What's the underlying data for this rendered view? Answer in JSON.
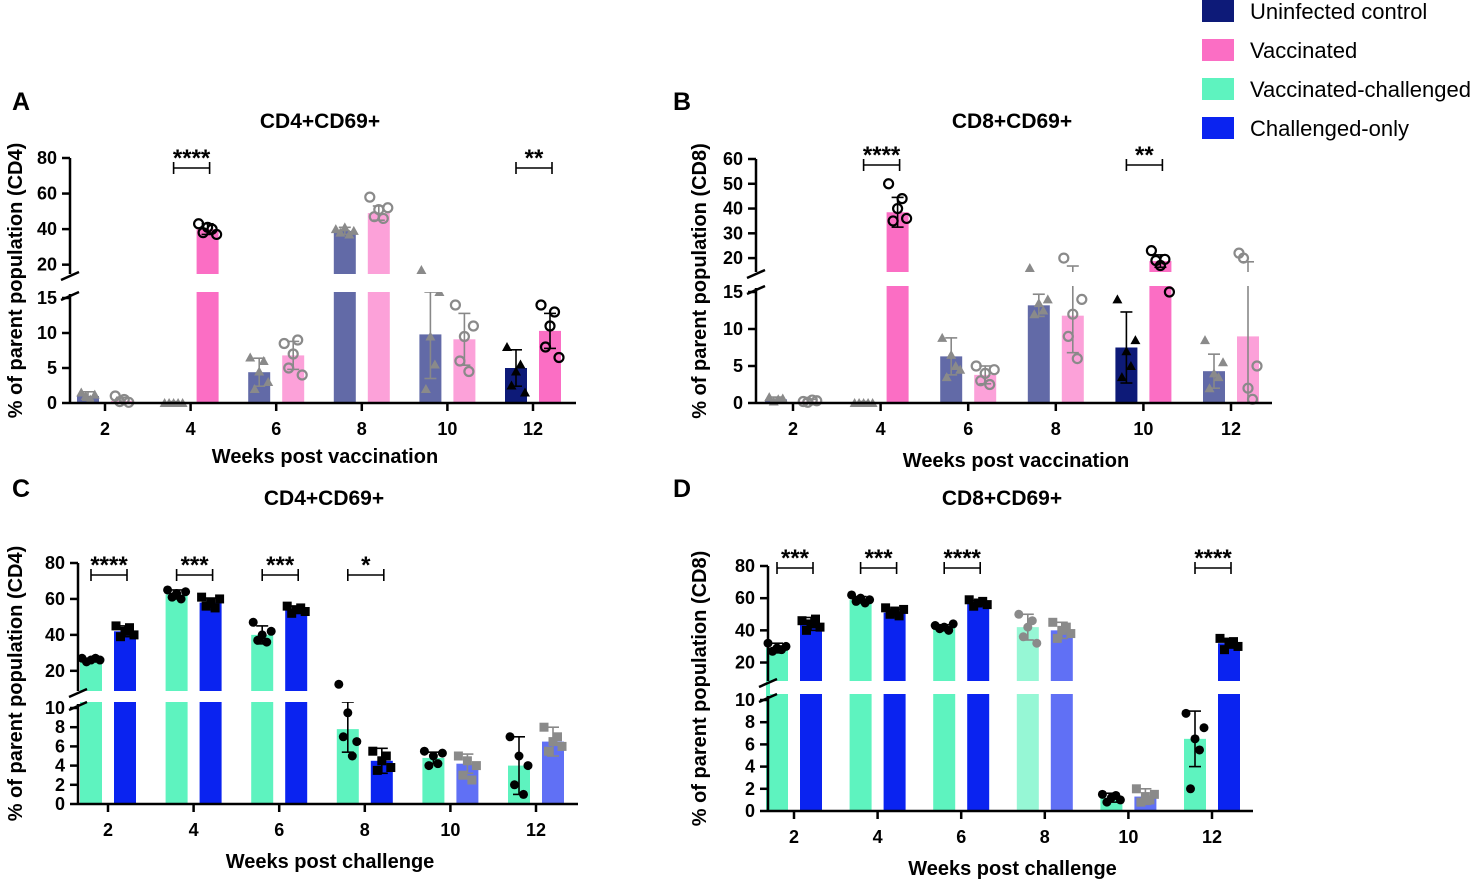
{
  "legend": {
    "items": [
      {
        "key": "uninfected",
        "label": "Uninfected control",
        "color": "#0d1a78"
      },
      {
        "key": "vaccinated",
        "label": "Vaccinated",
        "color": "#fb6ec4"
      },
      {
        "key": "vacc_chal",
        "label": "Vaccinated-challenged",
        "color": "#5ef3bf"
      },
      {
        "key": "chal_only",
        "label": "Challenged-only",
        "color": "#0a23f0"
      }
    ]
  },
  "chart_data": [
    {
      "panel": "A",
      "type": "bar",
      "title": "CD4+CD69+",
      "xlabel": "Weeks post vaccination",
      "ylabel": "% of parent population (CD4)",
      "categories": [
        "2",
        "4",
        "6",
        "8",
        "10",
        "12"
      ],
      "y_broken": true,
      "lower_ylim": [
        0,
        15
      ],
      "lower_ticks": [
        0,
        5,
        10,
        15
      ],
      "upper_ylim": [
        17,
        80
      ],
      "upper_ticks": [
        20,
        40,
        60,
        80
      ],
      "series": [
        {
          "name": "Uninfected control",
          "marker": "triangle",
          "values": [
            1.0,
            0.1,
            4.4,
            39.0,
            9.8,
            5.0
          ],
          "errors": [
            0.6,
            0.1,
            2.0,
            2.0,
            6.3,
            2.6
          ],
          "points": [
            [
              1.5,
              1.0,
              0.5,
              1.2
            ],
            [
              0,
              0,
              0,
              0,
              0
            ],
            [
              6.5,
              2.0,
              4.5,
              6.0,
              3.0
            ],
            [
              40,
              38,
              41,
              37,
              39
            ],
            [
              17,
              2.0,
              9.5,
              5.5,
              16
            ],
            [
              8.0,
              2.5,
              4.5,
              5.5,
              1.5
            ]
          ],
          "faded": [
            true,
            true,
            true,
            true,
            true,
            false
          ]
        },
        {
          "name": "Vaccinated",
          "marker": "circle",
          "values": [
            0.3,
            40.0,
            6.8,
            49.0,
            9.1,
            10.3
          ],
          "errors": [
            0.5,
            3.0,
            2.0,
            4.0,
            3.7,
            2.5
          ],
          "points": [
            [
              1.0,
              0.2,
              0.5,
              0.1
            ],
            [
              43,
              38,
              41,
              40,
              37
            ],
            [
              8.5,
              5.0,
              7.0,
              9.0,
              4.0
            ],
            [
              58,
              47,
              51,
              46,
              52
            ],
            [
              14,
              6.0,
              9.5,
              4.5,
              11
            ],
            [
              14,
              8.0,
              11,
              13,
              6.5
            ]
          ],
          "faded": [
            true,
            false,
            true,
            true,
            true,
            false
          ]
        }
      ],
      "significance": [
        {
          "category": "4",
          "label": "****"
        },
        {
          "category": "12",
          "label": "**"
        }
      ]
    },
    {
      "panel": "B",
      "type": "bar",
      "title": "CD8+CD69+",
      "xlabel": "Weeks post vaccination",
      "ylabel": "% of parent population (CD8)",
      "categories": [
        "2",
        "4",
        "6",
        "8",
        "10",
        "12"
      ],
      "y_broken": true,
      "lower_ylim": [
        0,
        15
      ],
      "lower_ticks": [
        0,
        5,
        10,
        15
      ],
      "upper_ylim": [
        16,
        60
      ],
      "upper_ticks": [
        20,
        30,
        40,
        50,
        60
      ],
      "series": [
        {
          "name": "Uninfected control",
          "marker": "triangle",
          "values": [
            0.5,
            0.1,
            6.3,
            13.2,
            7.5,
            4.3
          ],
          "errors": [
            0.3,
            0.1,
            2.5,
            1.5,
            4.8,
            2.3
          ],
          "points": [
            [
              0.8,
              0.2,
              0.5,
              0.6
            ],
            [
              0,
              0,
              0,
              0,
              0
            ],
            [
              8.8,
              3.5,
              6.5,
              5.0,
              4.5
            ],
            [
              16,
              12,
              13.5,
              12.5,
              14
            ],
            [
              14,
              3.5,
              7.0,
              5.0,
              8.5
            ],
            [
              8.5,
              2.0,
              4.0,
              3.5,
              5.5
            ]
          ],
          "faded": [
            true,
            true,
            true,
            true,
            false,
            true
          ]
        },
        {
          "name": "Vaccinated",
          "marker": "circle",
          "values": [
            0.2,
            38.5,
            3.8,
            11.8,
            18.8,
            9.0
          ],
          "errors": [
            0.3,
            6.0,
            1.2,
            5.0,
            2.5,
            9.5
          ],
          "points": [
            [
              0.2,
              0.1,
              0.4,
              0.3
            ],
            [
              50,
              35,
              40,
              44,
              36
            ],
            [
              5.0,
              3.0,
              4.0,
              2.5,
              4.5
            ],
            [
              20,
              9.0,
              12,
              6.0,
              14
            ],
            [
              23,
              19,
              17,
              19.5,
              15
            ],
            [
              22,
              20,
              2.0,
              0.5,
              5.0
            ]
          ],
          "faded": [
            true,
            false,
            true,
            true,
            false,
            true
          ]
        }
      ],
      "significance": [
        {
          "category": "4",
          "label": "****"
        },
        {
          "category": "10",
          "label": "**"
        }
      ]
    },
    {
      "panel": "C",
      "type": "bar",
      "title": "CD4+CD69+",
      "xlabel": "Weeks post challenge",
      "ylabel": "% of parent population (CD4)",
      "categories": [
        "2",
        "4",
        "6",
        "8",
        "10",
        "12"
      ],
      "y_broken": true,
      "lower_ylim": [
        0,
        10
      ],
      "lower_ticks": [
        0,
        2,
        4,
        6,
        8,
        10
      ],
      "upper_ylim": [
        11,
        80
      ],
      "upper_ticks": [
        20,
        40,
        60,
        80
      ],
      "series": [
        {
          "name": "Vaccinated-challenged",
          "marker": "circle",
          "values": [
            26.0,
            62.5,
            40.0,
            7.8,
            4.8,
            4.0
          ],
          "errors": [
            1.0,
            2.5,
            5.0,
            2.4,
            0.6,
            3.0
          ],
          "points": [
            [
              27,
              25,
              26,
              27,
              26
            ],
            [
              65,
              61,
              63,
              60,
              64
            ],
            [
              47,
              37,
              40,
              36,
              42
            ],
            [
              12.5,
              7.0,
              9.5,
              5.0,
              6.5
            ],
            [
              5.5,
              4.0,
              5.0,
              4.2,
              5.3
            ],
            [
              7.0,
              2.0,
              5.0,
              1.0,
              4.0
            ]
          ],
          "faded": [
            false,
            false,
            false,
            false,
            false,
            false
          ]
        },
        {
          "name": "Challenged-only",
          "marker": "square",
          "values": [
            42.0,
            58.0,
            54.0,
            4.5,
            4.2,
            6.5
          ],
          "errors": [
            3.0,
            2.5,
            2.0,
            1.3,
            1.0,
            1.5
          ],
          "points": [
            [
              45,
              39,
              42,
              44,
              40
            ],
            [
              61,
              56,
              58,
              55,
              60
            ],
            [
              56,
              52,
              54,
              55,
              53
            ],
            [
              5.5,
              3.5,
              4.5,
              5.0,
              3.8
            ],
            [
              5.0,
              3.0,
              4.5,
              2.5,
              4.0
            ],
            [
              8.0,
              5.5,
              6.5,
              7.0,
              6.0
            ]
          ],
          "faded": [
            false,
            false,
            false,
            false,
            true,
            true
          ]
        }
      ],
      "significance": [
        {
          "category": "2",
          "label": "****"
        },
        {
          "category": "4",
          "label": "***"
        },
        {
          "category": "6",
          "label": "***"
        },
        {
          "category": "8",
          "label": "*"
        }
      ]
    },
    {
      "panel": "D",
      "type": "bar",
      "title": "CD8+CD69+",
      "xlabel": "Weeks post challenge",
      "ylabel": "% of parent population (CD8)",
      "categories": [
        "2",
        "4",
        "6",
        "8",
        "10",
        "12"
      ],
      "y_broken": true,
      "lower_ylim": [
        0,
        10
      ],
      "lower_ticks": [
        0,
        2,
        4,
        6,
        8,
        10
      ],
      "upper_ylim": [
        11,
        80
      ],
      "upper_ticks": [
        20,
        40,
        60,
        80
      ],
      "series": [
        {
          "name": "Vaccinated-challenged",
          "marker": "circle",
          "values": [
            29.0,
            59.0,
            42.0,
            42.0,
            1.2,
            6.5
          ],
          "errors": [
            3.0,
            2.0,
            1.5,
            8.0,
            0.4,
            2.5
          ],
          "points": [
            [
              32,
              27,
              29,
              28,
              30
            ],
            [
              62,
              58,
              60,
              57,
              59
            ],
            [
              43,
              41,
              42,
              40,
              44
            ],
            [
              50,
              36,
              42,
              46,
              32
            ],
            [
              1.5,
              0.8,
              1.2,
              1.4,
              1.0
            ],
            [
              8.8,
              2.0,
              6.5,
              5.5,
              7.5
            ]
          ],
          "faded": [
            false,
            false,
            false,
            true,
            false,
            false
          ]
        },
        {
          "name": "Challenged-only",
          "marker": "square",
          "values": [
            44.0,
            51.0,
            57.0,
            40.0,
            1.3,
            32.0
          ],
          "errors": [
            4.0,
            2.0,
            1.5,
            5.0,
            0.7,
            3.0
          ],
          "points": [
            [
              46,
              40,
              44,
              47,
              42
            ],
            [
              54,
              50,
              52,
              49,
              53
            ],
            [
              59,
              55,
              57,
              58,
              56
            ],
            [
              45,
              35,
              40,
              42,
              38
            ],
            [
              2.0,
              0.8,
              1.3,
              1.0,
              1.5
            ],
            [
              35,
              28,
              32,
              33,
              30
            ]
          ],
          "faded": [
            false,
            false,
            false,
            true,
            true,
            false
          ]
        }
      ],
      "significance": [
        {
          "category": "2",
          "label": "***"
        },
        {
          "category": "4",
          "label": "***"
        },
        {
          "category": "6",
          "label": "****"
        },
        {
          "category": "12",
          "label": "****"
        }
      ]
    }
  ]
}
